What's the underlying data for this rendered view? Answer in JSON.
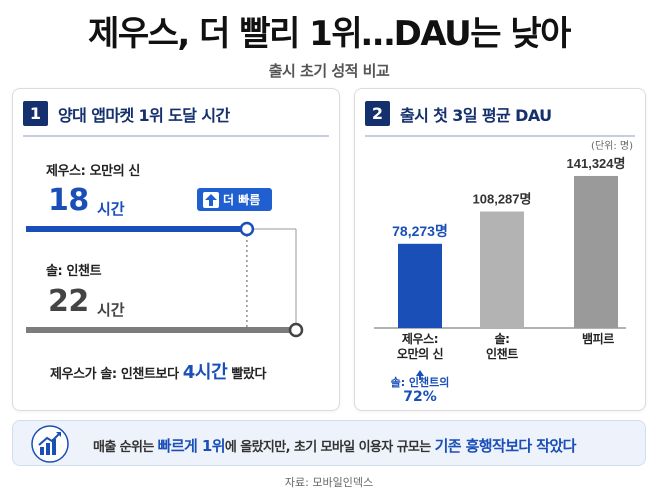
{
  "title": "제우스, 더 빨리 1위…DAU는 낮아",
  "subtitle": "출시 초기 성적 비교",
  "left_panel": {
    "number": "1",
    "title": "양대 앱마켓 1위 도달 시간",
    "faster_badge": "더 빠름",
    "summary_pre": "제우스가 솔: 인챈트보다 ",
    "summary_hl": "4시간",
    "summary_post": " 빨랐다"
  },
  "right_panel": {
    "number": "2",
    "title": "출시 첫 3일 평균 DAU",
    "unit_note": "(단위: 명)",
    "share_note_line1": "솔: 인챈트의",
    "share_note_pct": "72%"
  },
  "banner": {
    "part1": "매출 순위는 ",
    "emph1": "빠르게 1위",
    "part2": "에 올랐지만, 초기 모바일 이용자 규모는 ",
    "emph2": "기존 흥행작보다 작았다"
  },
  "source": "자료: 모바일인덱스",
  "colors": {
    "navy": "#14306d",
    "blue": "#1a4fb8",
    "gray_bar": "#a6a6a6",
    "gray_dark": "#7c7c7c"
  },
  "chart_data": [
    {
      "type": "bar",
      "title": "양대 앱마켓 1위 도달 시간",
      "categories": [
        "제우스: 오만의 신",
        "솔: 인챈트"
      ],
      "values": [
        18,
        22
      ],
      "unit": "시간",
      "xlim": [
        0,
        22
      ]
    },
    {
      "type": "bar",
      "title": "출시 첫 3일 평균 DAU",
      "categories": [
        "제우스:\n오만의 신",
        "솔:\n인챈트",
        "뱀피르"
      ],
      "values": [
        78273,
        108287,
        141324
      ],
      "labels": [
        "78,273명",
        "108,287명",
        "141,324명"
      ],
      "unit": "명",
      "ylim": [
        0,
        145000
      ]
    }
  ]
}
